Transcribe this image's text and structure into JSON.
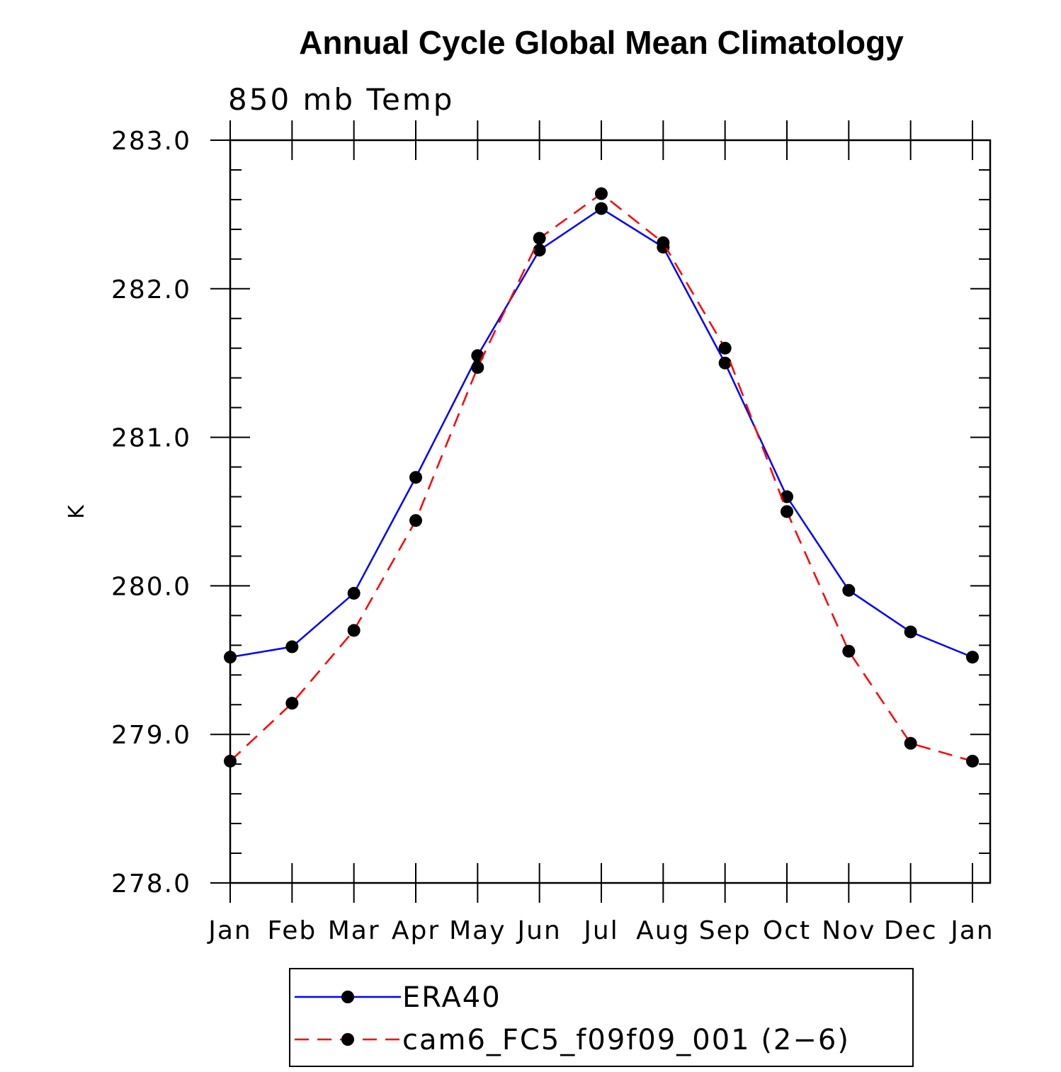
{
  "chart_data": {
    "type": "line",
    "title": "Annual Cycle Global Mean Climatology",
    "subtitle": "850 mb Temp",
    "xlabel": "",
    "ylabel": "K",
    "categories": [
      "Jan",
      "Feb",
      "Mar",
      "Apr",
      "May",
      "Jun",
      "Jul",
      "Aug",
      "Sep",
      "Oct",
      "Nov",
      "Dec",
      "Jan"
    ],
    "ylim": [
      278.0,
      283.0
    ],
    "yticks": [
      "278.0",
      "279.0",
      "280.0",
      "281.0",
      "282.0",
      "283.0"
    ],
    "grid": false,
    "legend_position": "bottom",
    "series": [
      {
        "name": "ERA40",
        "color": "#0000ff",
        "dash": "solid",
        "marker": "filled-circle",
        "values": [
          279.52,
          279.59,
          279.95,
          280.73,
          281.55,
          282.26,
          282.54,
          282.28,
          281.5,
          280.6,
          279.97,
          279.69,
          279.52
        ]
      },
      {
        "name": "cam6_FC5_f09f09_001 (2−6)",
        "color": "#ff0000",
        "dash": "dashed",
        "marker": "filled-circle",
        "values": [
          278.82,
          279.21,
          279.7,
          280.44,
          281.47,
          282.34,
          282.64,
          282.31,
          281.6,
          280.5,
          279.56,
          278.94,
          278.82
        ]
      }
    ]
  }
}
